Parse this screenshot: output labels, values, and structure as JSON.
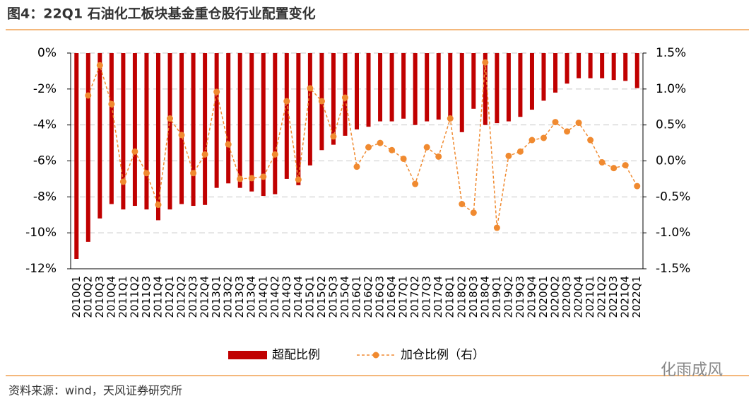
{
  "chart_data": {
    "type": "bar-line",
    "title": "图4：22Q1 石油化工板块基金重仓股行业配置变化",
    "source": "资料来源：wind，天风证券研究所",
    "watermark": "化雨成风",
    "categories": [
      "2010Q1",
      "2010Q2",
      "2010Q3",
      "2010Q4",
      "2011Q1",
      "2011Q2",
      "2011Q3",
      "2011Q4",
      "2012Q1",
      "2012Q2",
      "2012Q3",
      "2012Q4",
      "2013Q1",
      "2013Q2",
      "2013Q3",
      "2013Q4",
      "2014Q1",
      "2014Q2",
      "2014Q3",
      "2014Q4",
      "2015Q1",
      "2015Q2",
      "2015Q3",
      "2015Q4",
      "2016Q1",
      "2016Q2",
      "2016Q3",
      "2016Q4",
      "2017Q1",
      "2017Q2",
      "2017Q3",
      "2017Q4",
      "2018Q1",
      "2018Q2",
      "2018Q3",
      "2018Q4",
      "2019Q1",
      "2019Q2",
      "2019Q3",
      "2019Q4",
      "2020Q1",
      "2020Q2",
      "2020Q3",
      "2020Q4",
      "2021Q1",
      "2021Q2",
      "2021Q3",
      "2021Q4",
      "2022Q1"
    ],
    "series": [
      {
        "name": "超配比例",
        "type": "bar",
        "color": "#c00000",
        "values": [
          -11.45,
          -10.5,
          -9.2,
          -8.4,
          -8.7,
          -8.5,
          -8.7,
          -9.3,
          -8.7,
          -8.4,
          -8.5,
          -8.45,
          -7.5,
          -7.25,
          -7.5,
          -7.7,
          -7.95,
          -7.85,
          -7.0,
          -7.35,
          -6.25,
          -5.4,
          -5.1,
          -4.6,
          -4.25,
          -4.1,
          -3.8,
          -3.8,
          -3.65,
          -4.0,
          -3.8,
          -3.7,
          -3.7,
          -4.4,
          -3.1,
          -4.0,
          -3.9,
          -3.8,
          -3.55,
          -3.15,
          -2.65,
          -2.2,
          -1.7,
          -1.4,
          -1.4,
          -1.4,
          -1.5,
          -1.55,
          -1.95
        ]
      },
      {
        "name": "加仓比例（右）",
        "type": "line",
        "axis": "y2",
        "color": "#f08a30",
        "values": [
          null,
          0.91,
          1.33,
          0.79,
          -0.29,
          0.13,
          -0.17,
          -0.61,
          0.59,
          0.36,
          -0.17,
          0.09,
          0.96,
          0.23,
          -0.25,
          -0.24,
          -0.22,
          0.09,
          0.83,
          -0.26,
          1.01,
          0.83,
          0.34,
          0.88,
          -0.08,
          0.19,
          0.25,
          0.15,
          0.03,
          -0.32,
          0.19,
          0.06,
          0.59,
          -0.6,
          -0.72,
          1.37,
          -0.93,
          0.07,
          0.13,
          0.29,
          0.32,
          0.54,
          0.41,
          0.53,
          0.29,
          -0.02,
          -0.1,
          -0.06,
          -0.35
        ]
      }
    ],
    "ylim": [
      -12,
      0
    ],
    "yticks": [
      {
        "value": 0,
        "label": "0%"
      },
      {
        "value": -2,
        "label": "-2%"
      },
      {
        "value": -4,
        "label": "-4%"
      },
      {
        "value": -6,
        "label": "-6%"
      },
      {
        "value": -8,
        "label": "-8%"
      },
      {
        "value": -10,
        "label": "-10%"
      },
      {
        "value": -12,
        "label": "-12%"
      }
    ],
    "y2lim": [
      -1.5,
      1.5
    ],
    "y2ticks": [
      {
        "value": 1.5,
        "label": "1.5%"
      },
      {
        "value": 1.0,
        "label": "1.0%"
      },
      {
        "value": 0.5,
        "label": "0.5%"
      },
      {
        "value": 0,
        "label": "0.0%"
      },
      {
        "value": -0.5,
        "label": "-0.5%"
      },
      {
        "value": -1.0,
        "label": "-1.0%"
      },
      {
        "value": -1.5,
        "label": "-1.5%"
      }
    ],
    "grid": true
  }
}
